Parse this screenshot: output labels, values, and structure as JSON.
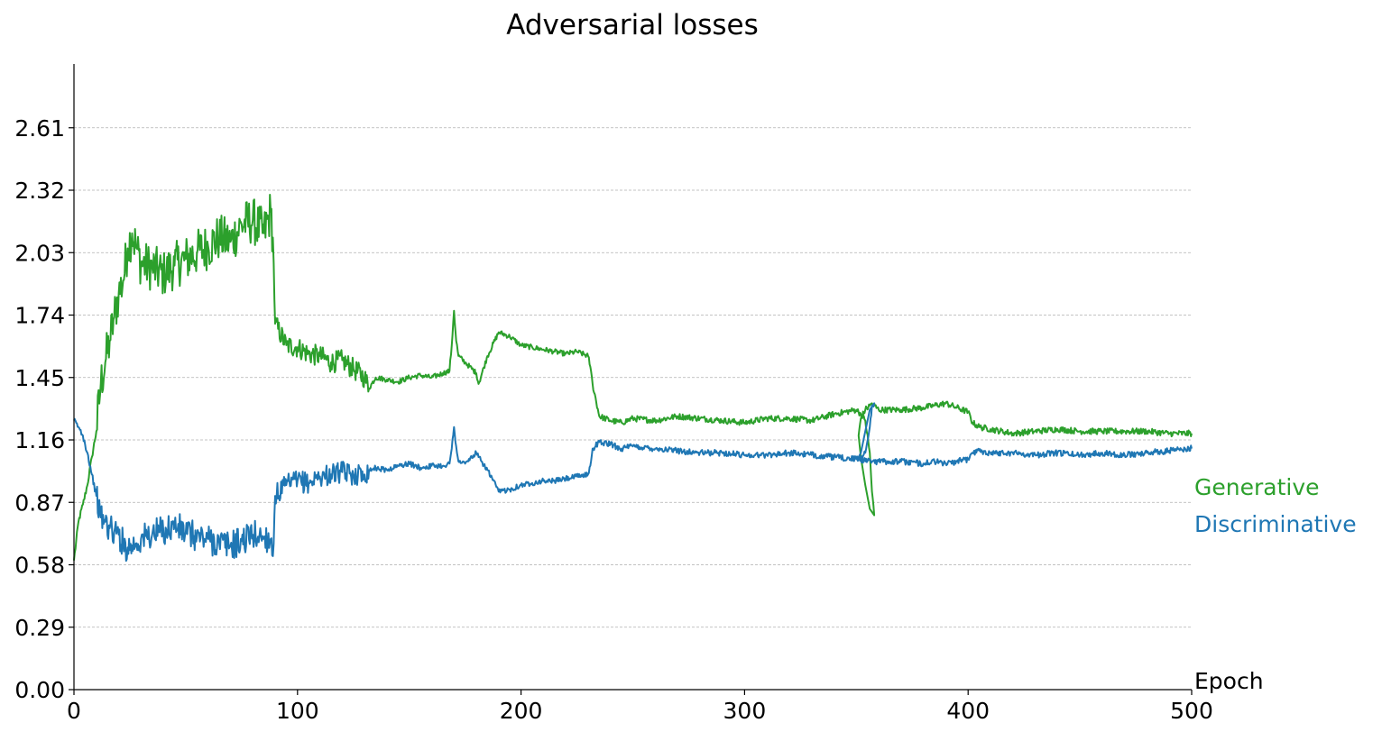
{
  "chart_data": {
    "type": "line",
    "title": "Adversarial losses",
    "xlabel": "Epoch",
    "ylabel": "",
    "xlim": [
      0,
      500
    ],
    "ylim": [
      0,
      2.9
    ],
    "x_ticks": [
      0,
      100,
      200,
      300,
      400,
      500
    ],
    "x_tick_labels": [
      "0",
      "100",
      "200",
      "300",
      "400",
      "500"
    ],
    "y_ticks": [
      0,
      0.29,
      0.58,
      0.87,
      1.16,
      1.45,
      1.74,
      2.03,
      2.32,
      2.61
    ],
    "y_tick_labels": [
      "0.00",
      "0.29",
      "0.58",
      "0.87",
      "1.16",
      "1.45",
      "1.74",
      "2.03",
      "2.32",
      "2.61"
    ],
    "grid": "horizontal dashed",
    "legend": "right side labels",
    "series": [
      {
        "name": "Generative",
        "color": "#2ca02c",
        "x": [
          0,
          2,
          4,
          6,
          8,
          10,
          12,
          14,
          16,
          18,
          20,
          22,
          24,
          26,
          28,
          30,
          35,
          40,
          45,
          50,
          55,
          60,
          65,
          70,
          75,
          80,
          85,
          88,
          89,
          90,
          95,
          100,
          105,
          110,
          115,
          120,
          125,
          130,
          132,
          135,
          140,
          145,
          150,
          155,
          160,
          165,
          168,
          169,
          170,
          171,
          172,
          175,
          180,
          181,
          185,
          190,
          195,
          200,
          205,
          210,
          215,
          220,
          225,
          230,
          231,
          232,
          235,
          240,
          245,
          250,
          260,
          270,
          280,
          290,
          300,
          310,
          320,
          330,
          340,
          350,
          352,
          354,
          356,
          357,
          358,
          356,
          354,
          352,
          351,
          352,
          354,
          356,
          357,
          360,
          370,
          380,
          385,
          390,
          395,
          400,
          402,
          405,
          410,
          420,
          430,
          440,
          450,
          460,
          470,
          480,
          490,
          500
        ],
        "values": [
          0.6,
          0.78,
          0.86,
          0.95,
          1.08,
          1.2,
          1.42,
          1.52,
          1.62,
          1.73,
          1.84,
          1.9,
          2.05,
          2.12,
          2.05,
          1.98,
          1.96,
          1.93,
          1.97,
          2.0,
          2.03,
          2.06,
          2.1,
          2.08,
          2.16,
          2.18,
          2.12,
          2.22,
          2.1,
          1.7,
          1.6,
          1.59,
          1.56,
          1.55,
          1.52,
          1.53,
          1.49,
          1.45,
          1.4,
          1.45,
          1.44,
          1.43,
          1.45,
          1.46,
          1.45,
          1.47,
          1.48,
          1.6,
          1.76,
          1.62,
          1.55,
          1.52,
          1.47,
          1.42,
          1.55,
          1.66,
          1.64,
          1.6,
          1.59,
          1.58,
          1.57,
          1.56,
          1.57,
          1.55,
          1.5,
          1.42,
          1.27,
          1.25,
          1.24,
          1.26,
          1.25,
          1.27,
          1.26,
          1.25,
          1.24,
          1.26,
          1.26,
          1.25,
          1.28,
          1.3,
          1.28,
          1.25,
          1.1,
          0.92,
          0.81,
          0.84,
          0.95,
          1.08,
          1.18,
          1.26,
          1.3,
          1.32,
          1.33,
          1.3,
          1.3,
          1.31,
          1.32,
          1.33,
          1.31,
          1.29,
          1.24,
          1.22,
          1.21,
          1.19,
          1.2,
          1.21,
          1.2,
          1.2,
          1.2,
          1.2,
          1.19,
          1.19
        ]
      },
      {
        "name": "Discriminative",
        "color": "#1f77b4",
        "x": [
          0,
          2,
          4,
          6,
          8,
          10,
          12,
          14,
          16,
          18,
          20,
          22,
          24,
          26,
          28,
          30,
          35,
          40,
          45,
          50,
          55,
          60,
          65,
          70,
          75,
          80,
          85,
          88,
          89,
          90,
          95,
          100,
          105,
          110,
          115,
          120,
          125,
          130,
          132,
          135,
          140,
          145,
          150,
          155,
          160,
          165,
          168,
          169,
          170,
          171,
          172,
          175,
          180,
          181,
          185,
          190,
          195,
          200,
          205,
          210,
          215,
          220,
          225,
          230,
          231,
          232,
          235,
          240,
          245,
          250,
          260,
          270,
          280,
          290,
          300,
          310,
          320,
          330,
          340,
          350,
          352,
          354,
          356,
          357,
          358,
          356,
          354,
          352,
          351,
          352,
          354,
          356,
          357,
          360,
          370,
          380,
          385,
          390,
          395,
          400,
          402,
          405,
          410,
          420,
          430,
          440,
          450,
          460,
          470,
          480,
          490,
          500
        ],
        "values": [
          1.25,
          1.22,
          1.18,
          1.1,
          1.0,
          0.9,
          0.8,
          0.78,
          0.75,
          0.73,
          0.72,
          0.68,
          0.66,
          0.67,
          0.68,
          0.7,
          0.72,
          0.74,
          0.76,
          0.73,
          0.71,
          0.7,
          0.68,
          0.67,
          0.69,
          0.72,
          0.71,
          0.7,
          0.62,
          0.9,
          0.95,
          0.97,
          0.96,
          0.99,
          1.0,
          1.01,
          1.0,
          1.0,
          1.02,
          1.03,
          1.02,
          1.04,
          1.05,
          1.03,
          1.04,
          1.04,
          1.05,
          1.12,
          1.22,
          1.13,
          1.06,
          1.05,
          1.1,
          1.08,
          1.02,
          0.92,
          0.93,
          0.95,
          0.96,
          0.97,
          0.97,
          0.98,
          0.99,
          1.0,
          1.04,
          1.12,
          1.15,
          1.14,
          1.12,
          1.13,
          1.12,
          1.11,
          1.1,
          1.1,
          1.09,
          1.09,
          1.1,
          1.09,
          1.08,
          1.07,
          1.08,
          1.1,
          1.22,
          1.32,
          1.33,
          1.3,
          1.2,
          1.1,
          1.08,
          1.07,
          1.06,
          1.07,
          1.06,
          1.06,
          1.06,
          1.05,
          1.06,
          1.05,
          1.06,
          1.07,
          1.1,
          1.11,
          1.1,
          1.1,
          1.09,
          1.1,
          1.09,
          1.1,
          1.09,
          1.1,
          1.11,
          1.12
        ]
      }
    ]
  }
}
